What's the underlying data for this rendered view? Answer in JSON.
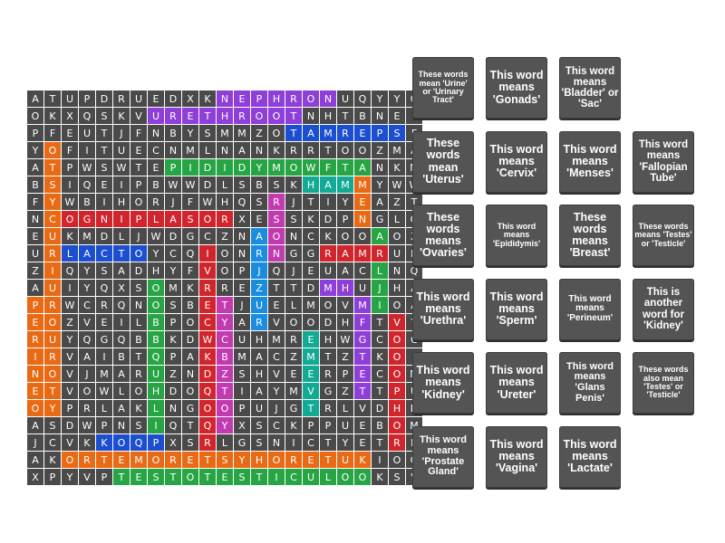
{
  "grid": {
    "rows": [
      "ATUPDRUEDXKNEPHRONUQYYG",
      "OKXQSKVURETHROOTNHTBNEI",
      "PFEUTJFNBYSMMZOTAMREPSF",
      "YOFITUECNMLNANKRRTOOZMA",
      "ATPWSWTEPIDIDYMOWFTANKM",
      "BSIQEIPBWWDLSBSKHAMMYWW",
      "FYWBIHORJFWHQSRJTIYEAZT",
      "NCOGNIPLASORXESSKDPNGLO",
      "EUKMDLJWDGCZNAONCKOOAOZ",
      "URLACTOYCQIONRNGGRAMRUR",
      "ZIQYSADHYFVOPJQJEUACLNQ",
      "AUIYQXSOMKRREZTTDMHUJHA",
      "PRWCRQNOSBETJUELMOVMIOA",
      "EOZVEILBPOCYARVOODHFTVY",
      "RUYQGQBBKDWCUHMREHWGCOC",
      "IRVAIBTQPAKBMACZMTZTKOI",
      "NOVJMARUZNDZSHVEERPECOM",
      "ETVOWLOHDOQTIAYMVGZTTPU",
      "OYPRLAKLNGOOPUJGTRLVDHD",
      "ASDWPNSIQTQYXSCKPPUEBOM",
      "JCVKKOQPXSRLGSNICTYETRR",
      "AKORTEMORETSYHORETUKIOG",
      "XPYVPTESTOTESTICULOOKSV"
    ],
    "highlights": [
      {
        "color": "#8e3fd8",
        "cells": [
          [
            0,
            11
          ],
          [
            0,
            12
          ],
          [
            0,
            13
          ],
          [
            0,
            14
          ],
          [
            0,
            15
          ],
          [
            0,
            16
          ],
          [
            0,
            17
          ]
        ]
      },
      {
        "color": "#8e3fd8",
        "cells": [
          [
            1,
            7
          ],
          [
            1,
            8
          ],
          [
            1,
            9
          ],
          [
            1,
            10
          ],
          [
            1,
            11
          ],
          [
            1,
            12
          ],
          [
            1,
            13
          ],
          [
            1,
            14
          ],
          [
            1,
            15
          ]
        ]
      },
      {
        "color": "#1c4fd0",
        "cells": [
          [
            2,
            15
          ],
          [
            2,
            16
          ],
          [
            2,
            17
          ],
          [
            2,
            18
          ],
          [
            2,
            19
          ],
          [
            2,
            20
          ],
          [
            2,
            21
          ]
        ]
      },
      {
        "color": "#27a545",
        "cells": [
          [
            4,
            8
          ],
          [
            4,
            9
          ],
          [
            4,
            10
          ],
          [
            4,
            11
          ],
          [
            4,
            12
          ],
          [
            4,
            13
          ],
          [
            4,
            14
          ],
          [
            4,
            15
          ],
          [
            4,
            16
          ],
          [
            4,
            17
          ],
          [
            4,
            18
          ],
          [
            4,
            19
          ]
        ]
      },
      {
        "color": "#d0252c",
        "cells": [
          [
            7,
            1
          ],
          [
            7,
            2
          ],
          [
            7,
            3
          ],
          [
            7,
            4
          ],
          [
            7,
            5
          ],
          [
            7,
            6
          ],
          [
            7,
            7
          ],
          [
            7,
            8
          ],
          [
            7,
            9
          ],
          [
            7,
            10
          ],
          [
            7,
            11
          ]
        ]
      },
      {
        "color": "#13aa95",
        "cells": [
          [
            5,
            16
          ],
          [
            5,
            17
          ],
          [
            5,
            18
          ]
        ]
      },
      {
        "color": "#1c4fd0",
        "cells": [
          [
            9,
            2
          ],
          [
            9,
            3
          ],
          [
            9,
            4
          ],
          [
            9,
            5
          ],
          [
            9,
            6
          ]
        ]
      },
      {
        "color": "#e86a15",
        "cells": [
          [
            3,
            1
          ],
          [
            4,
            1
          ],
          [
            5,
            1
          ],
          [
            6,
            1
          ],
          [
            7,
            1
          ],
          [
            8,
            1
          ],
          [
            9,
            1
          ],
          [
            10,
            1
          ],
          [
            11,
            1
          ],
          [
            12,
            1
          ],
          [
            13,
            1
          ],
          [
            14,
            1
          ],
          [
            15,
            1
          ],
          [
            16,
            1
          ],
          [
            17,
            1
          ],
          [
            18,
            1
          ]
        ]
      },
      {
        "color": "#e86a15",
        "cells": [
          [
            12,
            0
          ],
          [
            13,
            0
          ],
          [
            14,
            0
          ],
          [
            15,
            0
          ],
          [
            16,
            0
          ],
          [
            17,
            0
          ],
          [
            18,
            0
          ]
        ]
      },
      {
        "color": "#27a545",
        "cells": [
          [
            11,
            7
          ],
          [
            12,
            7
          ],
          [
            13,
            7
          ],
          [
            14,
            7
          ],
          [
            15,
            7
          ],
          [
            16,
            7
          ],
          [
            17,
            7
          ],
          [
            18,
            7
          ],
          [
            19,
            7
          ],
          [
            20,
            7
          ],
          [
            21,
            7
          ]
        ]
      },
      {
        "color": "#c23ab0",
        "cells": [
          [
            12,
            11
          ],
          [
            13,
            11
          ],
          [
            14,
            11
          ],
          [
            15,
            11
          ],
          [
            16,
            11
          ],
          [
            17,
            11
          ],
          [
            18,
            11
          ],
          [
            19,
            11
          ]
        ]
      },
      {
        "color": "#d0252c",
        "cells": [
          [
            9,
            10
          ],
          [
            10,
            10
          ],
          [
            11,
            10
          ],
          [
            12,
            10
          ],
          [
            13,
            10
          ],
          [
            14,
            10
          ],
          [
            15,
            10
          ],
          [
            16,
            10
          ],
          [
            17,
            10
          ],
          [
            18,
            10
          ],
          [
            19,
            10
          ],
          [
            20,
            10
          ]
        ]
      },
      {
        "color": "#e86a15",
        "cells": [
          [
            21,
            2
          ],
          [
            21,
            3
          ],
          [
            21,
            4
          ],
          [
            21,
            5
          ],
          [
            21,
            6
          ],
          [
            21,
            7
          ],
          [
            21,
            8
          ],
          [
            21,
            9
          ],
          [
            21,
            10
          ],
          [
            21,
            11
          ],
          [
            21,
            12
          ],
          [
            21,
            13
          ],
          [
            21,
            14
          ],
          [
            21,
            15
          ],
          [
            21,
            16
          ],
          [
            21,
            17
          ],
          [
            21,
            18
          ],
          [
            21,
            19
          ]
        ]
      },
      {
        "color": "#27a545",
        "cells": [
          [
            22,
            5
          ],
          [
            22,
            6
          ],
          [
            22,
            7
          ],
          [
            22,
            8
          ],
          [
            22,
            9
          ],
          [
            22,
            10
          ],
          [
            22,
            11
          ],
          [
            22,
            12
          ],
          [
            22,
            13
          ],
          [
            22,
            14
          ],
          [
            22,
            15
          ],
          [
            22,
            16
          ],
          [
            22,
            17
          ],
          [
            22,
            18
          ],
          [
            22,
            19
          ]
        ]
      },
      {
        "color": "#1a8de0",
        "cells": [
          [
            8,
            13
          ],
          [
            9,
            13
          ],
          [
            10,
            13
          ],
          [
            11,
            13
          ],
          [
            12,
            13
          ],
          [
            13,
            13
          ]
        ]
      },
      {
        "color": "#8e3fd8",
        "cells": [
          [
            12,
            19
          ],
          [
            13,
            19
          ],
          [
            14,
            19
          ],
          [
            15,
            19
          ],
          [
            16,
            19
          ],
          [
            17,
            19
          ]
        ]
      },
      {
        "color": "#d0252c",
        "cells": [
          [
            13,
            21
          ],
          [
            14,
            21
          ],
          [
            15,
            21
          ],
          [
            16,
            21
          ],
          [
            17,
            21
          ],
          [
            18,
            21
          ],
          [
            19,
            21
          ],
          [
            20,
            21
          ]
        ]
      },
      {
        "color": "#27a545",
        "cells": [
          [
            8,
            20
          ],
          [
            9,
            20
          ],
          [
            10,
            20
          ],
          [
            11,
            20
          ],
          [
            12,
            20
          ]
        ]
      },
      {
        "color": "#13aa95",
        "cells": [
          [
            14,
            16
          ],
          [
            15,
            16
          ],
          [
            16,
            16
          ],
          [
            17,
            16
          ],
          [
            18,
            16
          ]
        ]
      },
      {
        "color": "#d0252c",
        "cells": [
          [
            9,
            17
          ],
          [
            9,
            18
          ],
          [
            9,
            19
          ],
          [
            9,
            20
          ]
        ]
      },
      {
        "color": "#1c4fd0",
        "cells": [
          [
            20,
            4
          ],
          [
            20,
            5
          ],
          [
            20,
            6
          ],
          [
            20,
            7
          ]
        ]
      },
      {
        "color": "#c23ab0",
        "cells": [
          [
            6,
            14
          ],
          [
            7,
            14
          ],
          [
            8,
            14
          ],
          [
            9,
            14
          ]
        ]
      },
      {
        "color": "#8e3fd8",
        "cells": [
          [
            11,
            17
          ],
          [
            11,
            18
          ]
        ]
      },
      {
        "color": "#e86a15",
        "cells": [
          [
            5,
            19
          ],
          [
            6,
            19
          ],
          [
            7,
            19
          ]
        ]
      }
    ]
  },
  "cards": [
    {
      "text": "These words mean 'Urine' or 'Urinary Tract'",
      "row": 0,
      "col": 0,
      "size": 9
    },
    {
      "text": "This word means 'Gonads'",
      "row": 0,
      "col": 1,
      "size": 12.5
    },
    {
      "text": "This word means 'Bladder' or 'Sac'",
      "row": 0,
      "col": 2,
      "size": 11.5
    },
    {
      "text": "These words mean 'Uterus'",
      "row": 1,
      "col": 0,
      "size": 12.5
    },
    {
      "text": "This word means 'Cervix'",
      "row": 1,
      "col": 1,
      "size": 12.5
    },
    {
      "text": "This word means 'Menses'",
      "row": 1,
      "col": 2,
      "size": 12.5
    },
    {
      "text": "This word means 'Fallopian Tube'",
      "row": 1,
      "col": 3,
      "size": 11.5
    },
    {
      "text": "These words means 'Ovaries'",
      "row": 2,
      "col": 0,
      "size": 12.5
    },
    {
      "text": "This word means 'Epididymis'",
      "row": 2,
      "col": 1,
      "size": 9
    },
    {
      "text": "These words means 'Breast'",
      "row": 2,
      "col": 2,
      "size": 12.5
    },
    {
      "text": "These words means 'Testes' or 'Testicle'",
      "row": 2,
      "col": 3,
      "size": 9
    },
    {
      "text": "This word means 'Urethra'",
      "row": 3,
      "col": 0,
      "size": 12.5
    },
    {
      "text": "This word means 'Sperm'",
      "row": 3,
      "col": 1,
      "size": 12.5
    },
    {
      "text": "This word means 'Perineum'",
      "row": 3,
      "col": 2,
      "size": 10
    },
    {
      "text": "This is another word for 'Kidney'",
      "row": 3,
      "col": 3,
      "size": 11.5
    },
    {
      "text": "This word means 'Kidney'",
      "row": 4,
      "col": 0,
      "size": 12.5
    },
    {
      "text": "This word means 'Ureter'",
      "row": 4,
      "col": 1,
      "size": 12.5
    },
    {
      "text": "This word means 'Glans Penis'",
      "row": 4,
      "col": 2,
      "size": 11
    },
    {
      "text": "These words also mean 'Testes' or 'Testicle'",
      "row": 4,
      "col": 3,
      "size": 9
    },
    {
      "text": "This word means 'Prostate Gland'",
      "row": 5,
      "col": 0,
      "size": 11
    },
    {
      "text": "This word means 'Vagina'",
      "row": 5,
      "col": 1,
      "size": 12.5
    },
    {
      "text": "This word means 'Lactate'",
      "row": 5,
      "col": 2,
      "size": 12.5
    }
  ]
}
